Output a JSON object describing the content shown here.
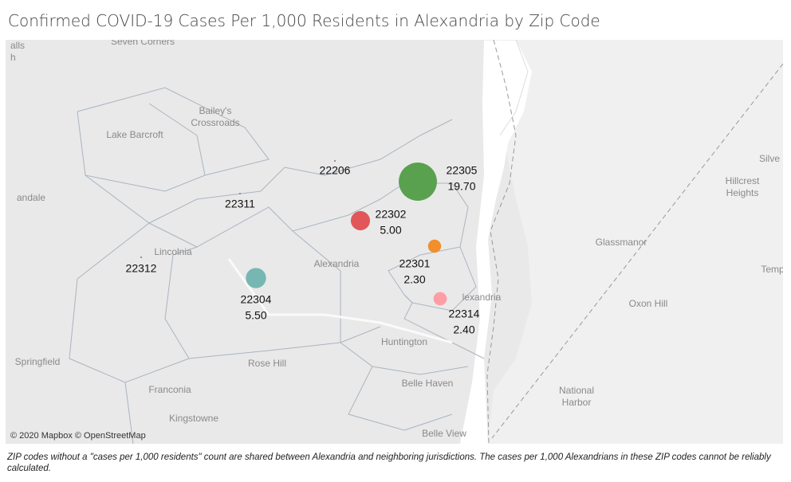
{
  "title": "Confirmed COVID-19 Cases Per 1,000 Residents in Alexandria by Zip Code",
  "attribution": "© 2020 Mapbox © OpenStreetMap",
  "footnote": "ZIP codes without a \"cases per 1,000 residents\" count are shared between Alexandria and neighboring jurisdictions. The cases per 1,000 Alexandrians in these ZIP codes cannot be reliably calculated.",
  "place_labels": [
    [
      "Seven Corners"
    ],
    [
      "alls",
      "h"
    ],
    [
      "Bailey's",
      "Crossroads"
    ],
    [
      "Lake Barcroft"
    ],
    [
      "andale"
    ],
    [
      "Lincolnia"
    ],
    [
      "Alexandria"
    ],
    [
      "lexandria"
    ],
    [
      "Huntington"
    ],
    [
      "Springfield"
    ],
    [
      "Rose Hill"
    ],
    [
      "Franconia"
    ],
    [
      "Kingstowne"
    ],
    [
      "Belle Haven"
    ],
    [
      "Belle View"
    ],
    [
      "National",
      "Harbor"
    ],
    [
      "Oxon Hill"
    ],
    [
      "Glassmanor"
    ],
    [
      "Hillcrest",
      "Heights"
    ],
    [
      "Silve"
    ],
    [
      "Temp"
    ]
  ],
  "zip_codes": [
    {
      "zip": "22305",
      "cases_per_1000": 19.7,
      "value_label": "19.70",
      "color": "#59a14f"
    },
    {
      "zip": "22302",
      "cases_per_1000": 5.0,
      "value_label": "5.00",
      "color": "#e15759"
    },
    {
      "zip": "22301",
      "cases_per_1000": 2.3,
      "value_label": "2.30",
      "color": "#f28e2b"
    },
    {
      "zip": "22304",
      "cases_per_1000": 5.5,
      "value_label": "5.50",
      "color": "#76b7b2"
    },
    {
      "zip": "22314",
      "cases_per_1000": 2.4,
      "value_label": "2.40",
      "color": "#ff9da7"
    },
    {
      "zip": "22206",
      "cases_per_1000": null
    },
    {
      "zip": "22311",
      "cases_per_1000": null
    },
    {
      "zip": "22312",
      "cases_per_1000": null
    }
  ]
}
